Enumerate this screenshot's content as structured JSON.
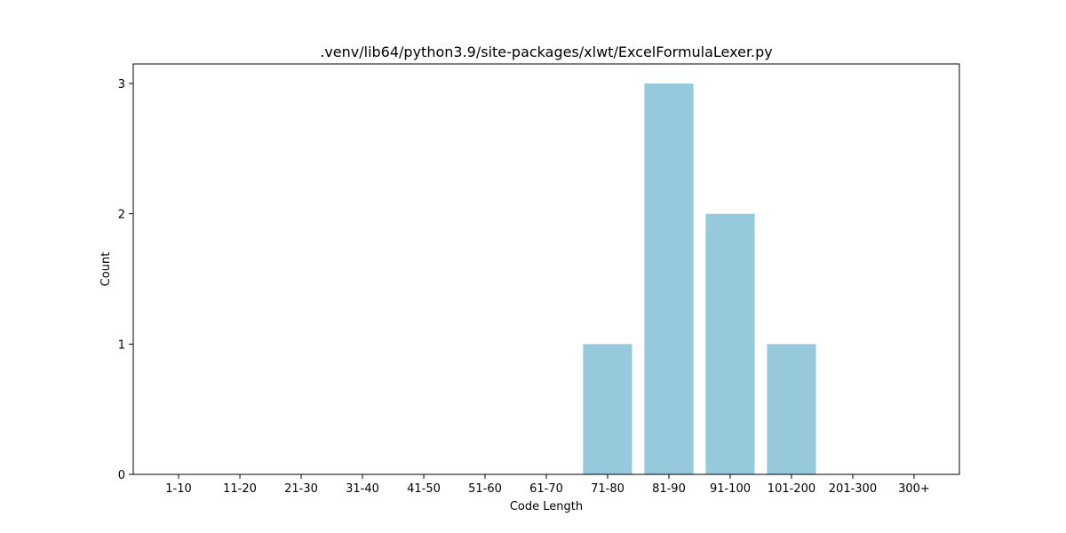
{
  "chart_data": {
    "type": "bar",
    "title": ".venv/lib64/python3.9/site-packages/xlwt/ExcelFormulaLexer.py",
    "xlabel": "Code Length",
    "ylabel": "Count",
    "categories": [
      "1-10",
      "11-20",
      "21-30",
      "31-40",
      "41-50",
      "51-60",
      "61-70",
      "71-80",
      "81-90",
      "91-100",
      "101-200",
      "201-300",
      "300+"
    ],
    "values": [
      0,
      0,
      0,
      0,
      0,
      0,
      0,
      1,
      3,
      2,
      1,
      0,
      0
    ],
    "ylim": [
      0,
      3.15
    ],
    "yticks": [
      0,
      1,
      2,
      3
    ],
    "bar_color": "#96c9dc",
    "grid": false,
    "legend": "none"
  }
}
